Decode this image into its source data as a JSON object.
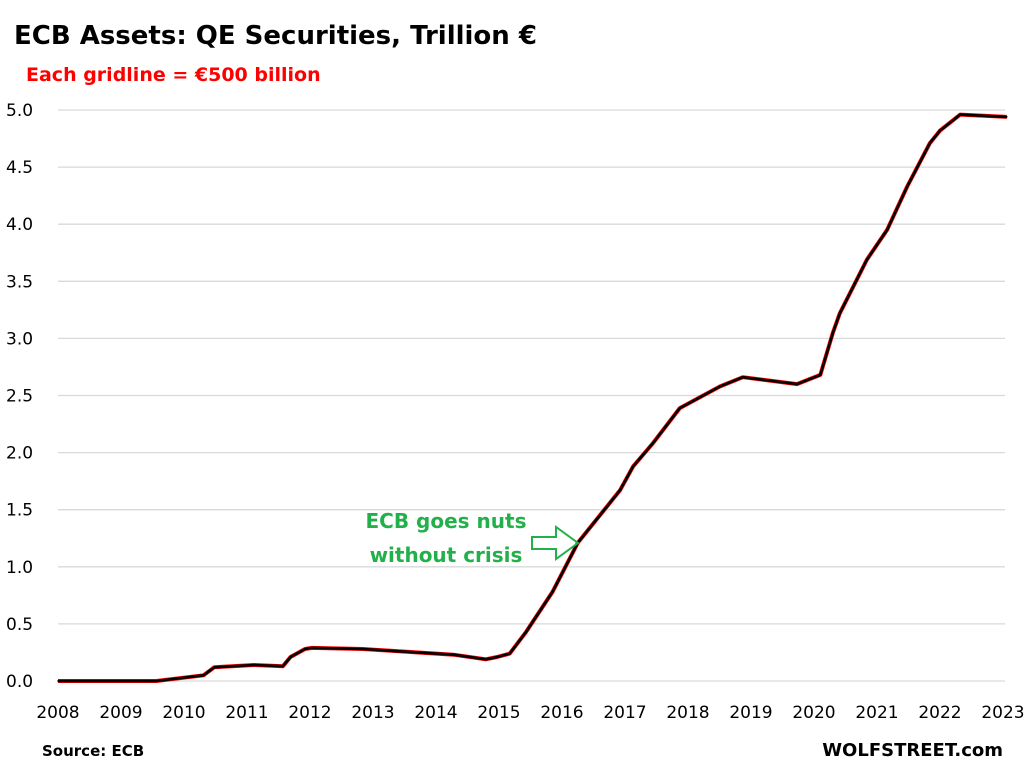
{
  "chart_data": {
    "type": "line",
    "title": "ECB Assets: QE Securities, Trillion €",
    "subtitle": "Each gridline = €500 billion",
    "xlabel": "",
    "ylabel": "",
    "xlim": [
      2008,
      2023.1
    ],
    "ylim": [
      0,
      5.0
    ],
    "grid": true,
    "x_ticks": [
      "2008",
      "2009",
      "2010",
      "2011",
      "2012",
      "2013",
      "2014",
      "2015",
      "2016",
      "2017",
      "2018",
      "2019",
      "2020",
      "2021",
      "2022",
      "2023"
    ],
    "y_ticks": [
      "0.0",
      "0.5",
      "1.0",
      "1.5",
      "2.0",
      "2.5",
      "3.0",
      "3.5",
      "4.0",
      "4.5",
      "5.0"
    ],
    "line_color": "#000000",
    "line_outline_color": "#ff0000",
    "series": [
      {
        "x": [
          2008.0,
          2009.56,
          2010.31,
          2010.48,
          2011.11,
          2011.57,
          2011.69,
          2011.92,
          2012.03,
          2012.84,
          2013.41,
          2014.28,
          2014.79,
          2014.97,
          2015.17,
          2015.43,
          2015.85,
          2016.25,
          2016.92,
          2017.13,
          2017.44,
          2017.87,
          2018.51,
          2018.87,
          2019.73,
          2020.1,
          2020.3,
          2020.41,
          2020.84,
          2021.16,
          2021.48,
          2021.84,
          2022.0,
          2022.32,
          2023.06
        ],
        "y": [
          0.0,
          0.0,
          0.05,
          0.12,
          0.14,
          0.13,
          0.21,
          0.28,
          0.29,
          0.28,
          0.26,
          0.23,
          0.19,
          0.21,
          0.24,
          0.43,
          0.78,
          1.21,
          1.67,
          1.88,
          2.08,
          2.39,
          2.58,
          2.66,
          2.6,
          2.68,
          3.05,
          3.22,
          3.69,
          3.95,
          4.33,
          4.71,
          4.82,
          4.96,
          4.94
        ]
      }
    ],
    "annotation": {
      "lines": [
        "ECB goes nuts",
        "without crisis"
      ],
      "color": "#22b04b",
      "arrow": "right-arrow-outline"
    },
    "source": "Source: ECB",
    "brand": "WOLFSTREET.com",
    "gridline_color": "#d9d9d9"
  }
}
